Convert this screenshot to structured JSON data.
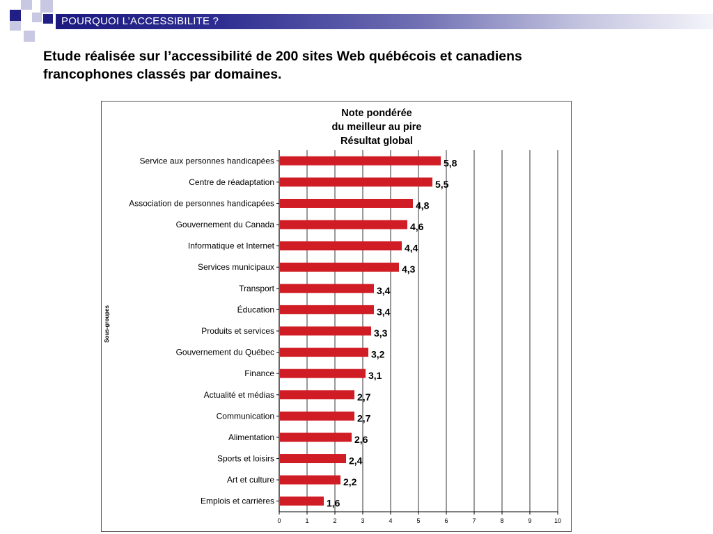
{
  "header": {
    "title": "POURQUOI L’ACCESSIBILITE ?"
  },
  "subtitle_lines": [
    "Etude réalisée sur l’accessibilité de 200 sites Web québécois et canadiens",
    "francophones classés par domaines."
  ],
  "colors": {
    "bar": "#d01c24",
    "header_dark": "#1a1a80",
    "square_dark": "#1f1f86",
    "square_light": "#c8c8e2",
    "grid": "#000000"
  },
  "chart_data": {
    "type": "bar",
    "orientation": "horizontal",
    "title_lines": [
      "Note pondérée",
      "du meilleur au pire",
      "Résultat global"
    ],
    "ylabel": "Sous-groupes",
    "xlabel": "",
    "xlim": [
      0,
      10
    ],
    "xticks": [
      "0",
      "1",
      "2",
      "3",
      "4",
      "5",
      "6",
      "7",
      "8",
      "9",
      "10"
    ],
    "grid": "vertical",
    "categories": [
      "Service aux personnes handicapées",
      "Centre de réadaptation",
      "Association de personnes handicapées",
      "Gouvernement du Canada",
      "Informatique et Internet",
      "Services municipaux",
      "Transport",
      "Éducation",
      "Produits et services",
      "Gouvernement du Québec",
      "Finance",
      "Actualité et médias",
      "Communication",
      "Alimentation",
      "Sports et loisirs",
      "Art et culture",
      "Emplois et carrières"
    ],
    "values": [
      5.8,
      5.5,
      4.8,
      4.6,
      4.4,
      4.3,
      3.4,
      3.4,
      3.3,
      3.2,
      3.1,
      2.7,
      2.7,
      2.6,
      2.4,
      2.2,
      1.6
    ],
    "value_labels": [
      "5,8",
      "5,5",
      "4,8",
      "4,6",
      "4,4",
      "4,3",
      "3,4",
      "3,4",
      "3,3",
      "3,2",
      "3,1",
      "2,7",
      "2,7",
      "2,6",
      "2,4",
      "2,2",
      "1,6"
    ]
  }
}
